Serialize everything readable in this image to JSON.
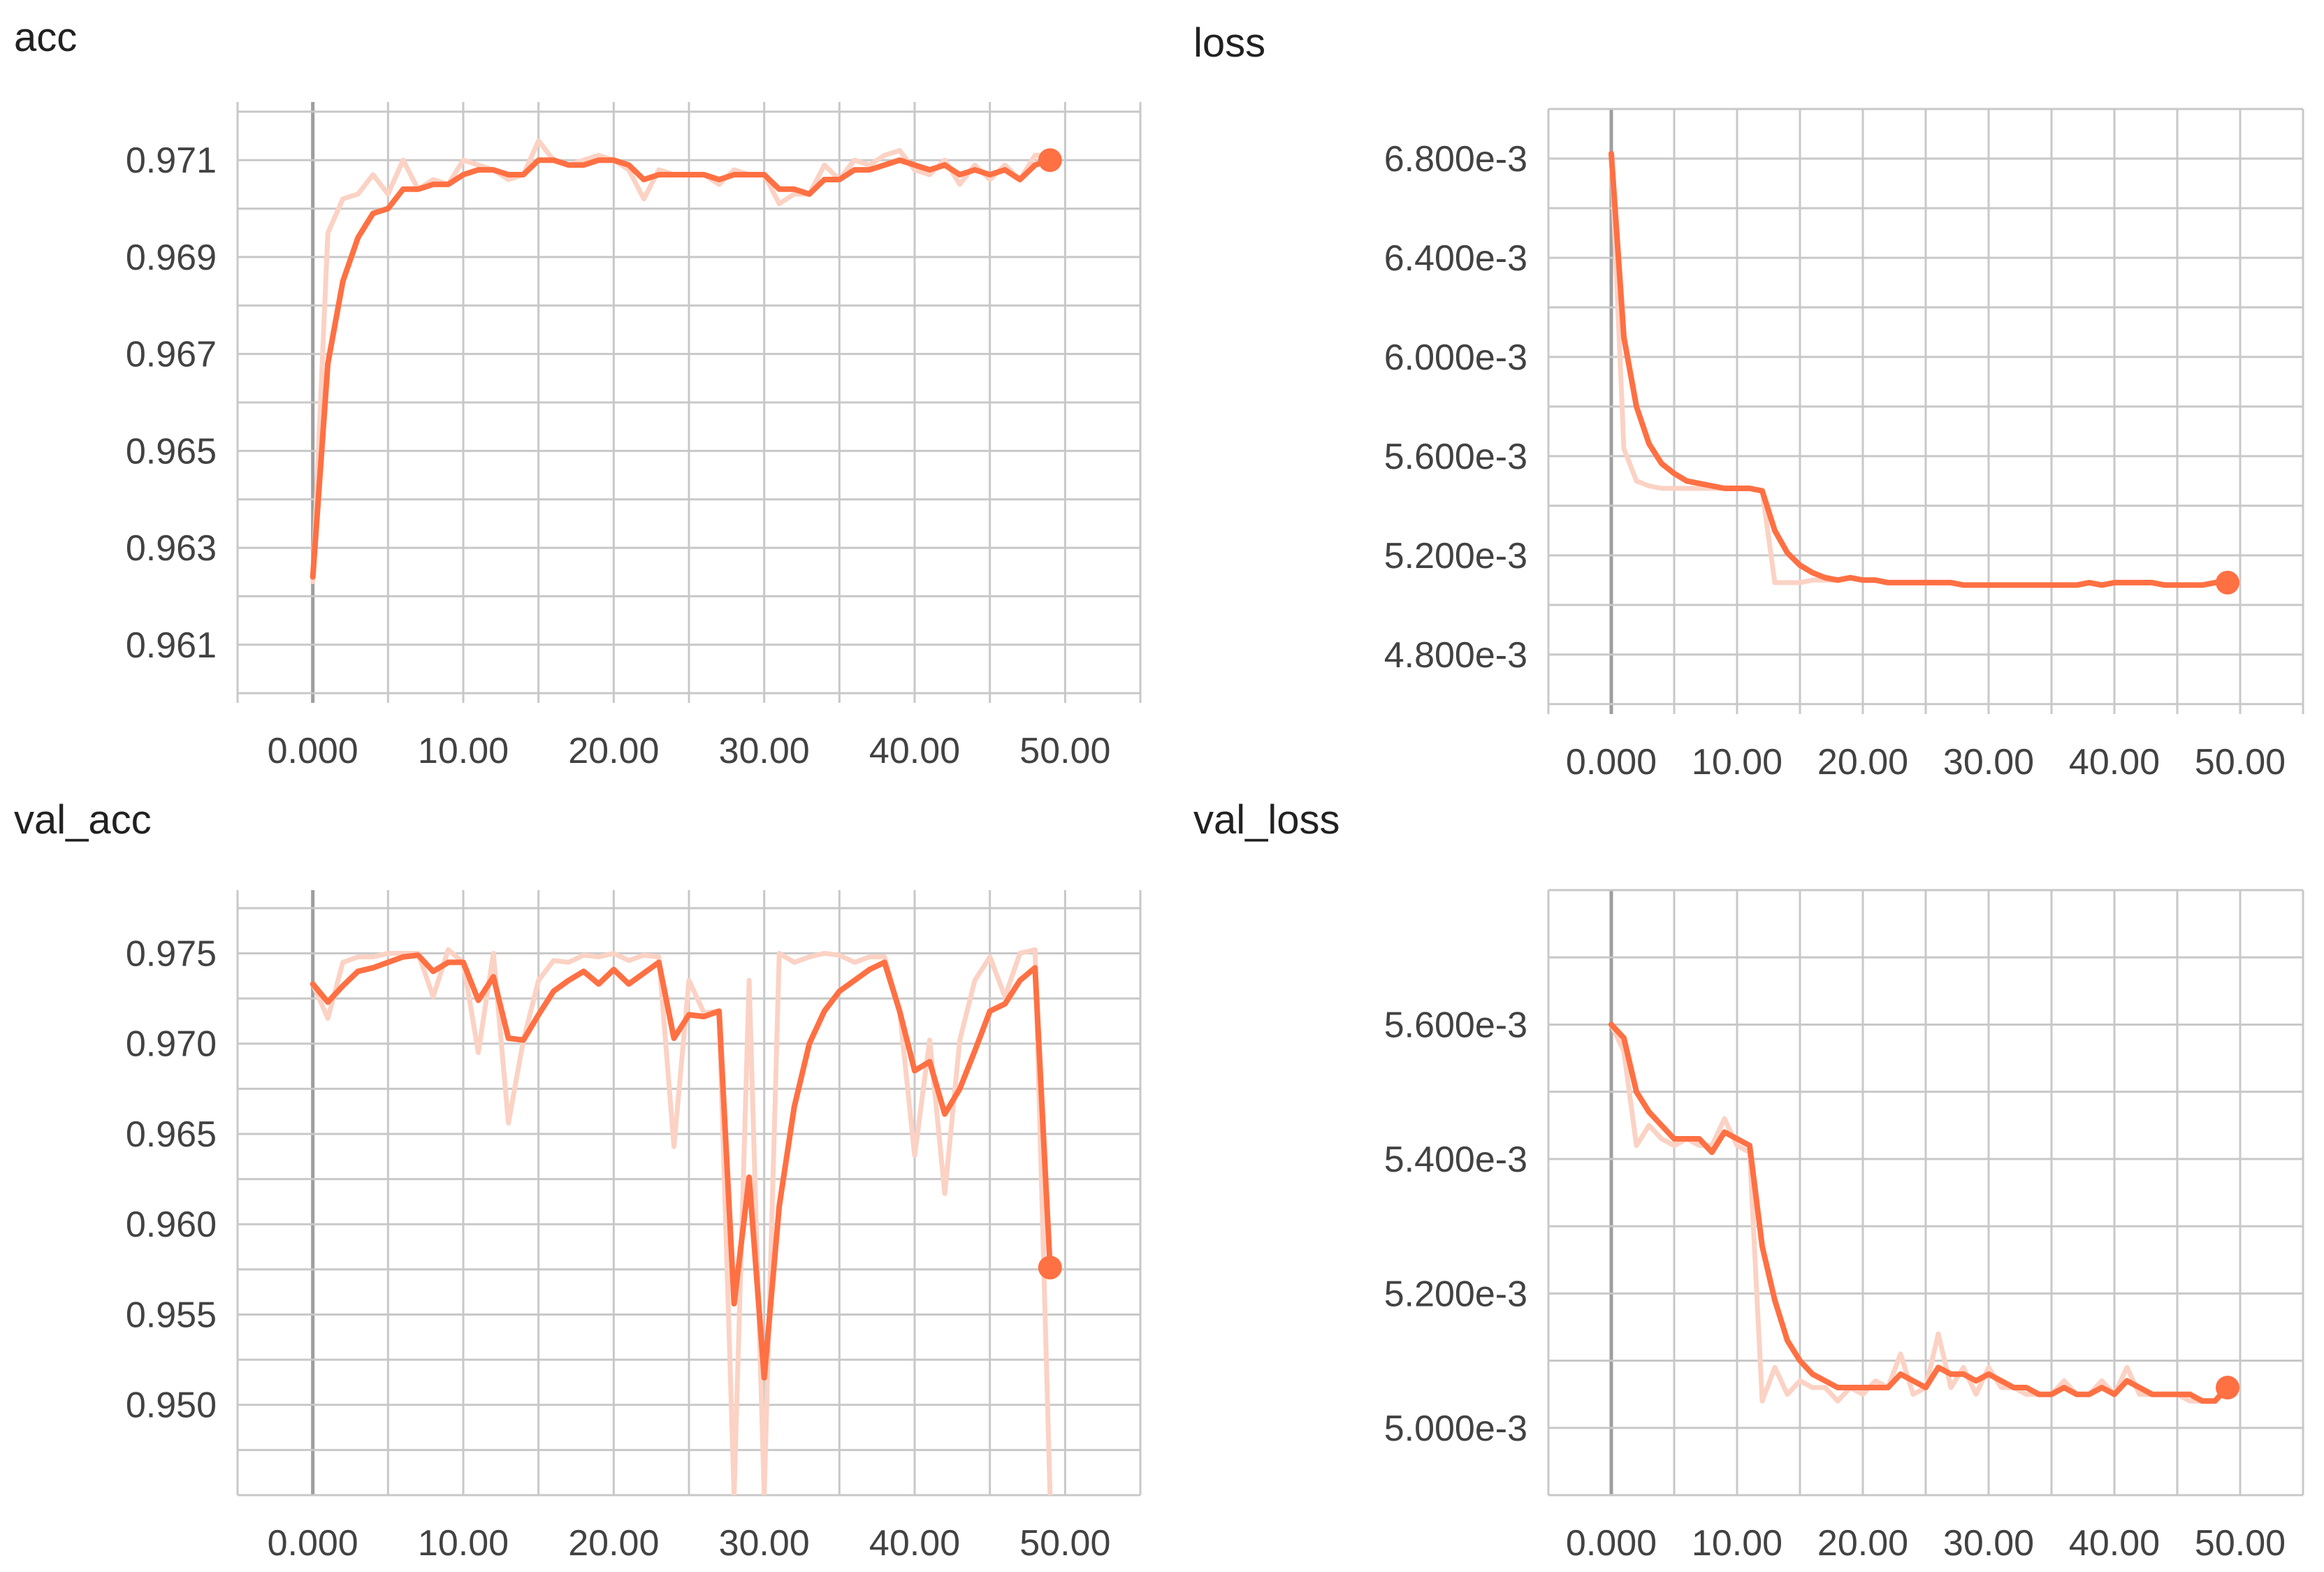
{
  "colors": {
    "series": "#ff7043",
    "raw_series": "#fbd2c4",
    "grid": "#c8c8c8",
    "zero_axis": "#9e9e9e",
    "text": "#212121"
  },
  "chart_data": [
    {
      "type": "line",
      "title": "acc",
      "xlim": [
        -5,
        55
      ],
      "ylim": [
        0.9598,
        0.9722
      ],
      "x_ticks": [
        "0.000",
        "10.00",
        "20.00",
        "30.00",
        "40.00",
        "50.00"
      ],
      "y_ticks": [
        "0.961",
        "0.963",
        "0.965",
        "0.967",
        "0.969",
        "0.971"
      ],
      "grid": true,
      "series": [
        {
          "role": "smoothed",
          "x": [
            0,
            1,
            2,
            3,
            4,
            5,
            6,
            7,
            8,
            9,
            10,
            11,
            12,
            13,
            14,
            15,
            16,
            17,
            18,
            19,
            20,
            21,
            22,
            23,
            24,
            25,
            26,
            27,
            28,
            29,
            30,
            31,
            32,
            33,
            34,
            35,
            36,
            37,
            38,
            39,
            40,
            41,
            42,
            43,
            44,
            45,
            46,
            47,
            48,
            49
          ],
          "y": [
            0.9624,
            0.9668,
            0.9685,
            0.9694,
            0.9699,
            0.97,
            0.9704,
            0.9704,
            0.9705,
            0.9705,
            0.9707,
            0.9708,
            0.9708,
            0.9707,
            0.9707,
            0.971,
            0.971,
            0.9709,
            0.9709,
            0.971,
            0.971,
            0.9709,
            0.9706,
            0.9707,
            0.9707,
            0.9707,
            0.9707,
            0.9706,
            0.9707,
            0.9707,
            0.9707,
            0.9704,
            0.9704,
            0.9703,
            0.9706,
            0.9706,
            0.9708,
            0.9708,
            0.9709,
            0.971,
            0.9709,
            0.9708,
            0.9709,
            0.9707,
            0.9708,
            0.9707,
            0.9708,
            0.9706,
            0.9709,
            0.971
          ]
        },
        {
          "role": "raw",
          "x": [
            0,
            1,
            2,
            3,
            4,
            5,
            6,
            7,
            8,
            9,
            10,
            11,
            12,
            13,
            14,
            15,
            16,
            17,
            18,
            19,
            20,
            21,
            22,
            23,
            24,
            25,
            26,
            27,
            28,
            29,
            30,
            31,
            32,
            33,
            34,
            35,
            36,
            37,
            38,
            39,
            40,
            41,
            42,
            43,
            44,
            45,
            46,
            47,
            48,
            49
          ],
          "y": [
            0.9623,
            0.9695,
            0.9702,
            0.9703,
            0.9707,
            0.9703,
            0.971,
            0.9704,
            0.9706,
            0.9705,
            0.971,
            0.9709,
            0.9708,
            0.9706,
            0.9707,
            0.9714,
            0.971,
            0.9709,
            0.971,
            0.9711,
            0.971,
            0.9708,
            0.9702,
            0.9708,
            0.9707,
            0.9707,
            0.9707,
            0.9705,
            0.9708,
            0.9707,
            0.9707,
            0.9701,
            0.9703,
            0.9703,
            0.9709,
            0.9706,
            0.971,
            0.9709,
            0.9711,
            0.9712,
            0.9708,
            0.9707,
            0.971,
            0.9705,
            0.9709,
            0.9706,
            0.9709,
            0.9706,
            0.9711,
            0.9711
          ]
        }
      ]
    },
    {
      "type": "line",
      "title": "loss",
      "xlim": [
        -5,
        55
      ],
      "ylim": [
        0.00456,
        0.007
      ],
      "x_ticks": [
        "0.000",
        "10.00",
        "20.00",
        "30.00",
        "40.00",
        "50.00"
      ],
      "y_ticks": [
        "4.800e-3",
        "5.200e-3",
        "5.600e-3",
        "6.000e-3",
        "6.400e-3",
        "6.800e-3"
      ],
      "grid": true,
      "series": [
        {
          "role": "smoothed",
          "x": [
            0,
            1,
            2,
            3,
            4,
            5,
            6,
            7,
            8,
            9,
            10,
            11,
            12,
            13,
            14,
            15,
            16,
            17,
            18,
            19,
            20,
            21,
            22,
            23,
            24,
            25,
            26,
            27,
            28,
            29,
            30,
            31,
            32,
            33,
            34,
            35,
            36,
            37,
            38,
            39,
            40,
            41,
            42,
            43,
            44,
            45,
            46,
            47,
            48,
            49
          ],
          "y": [
            0.00682,
            0.00608,
            0.0058,
            0.00565,
            0.00557,
            0.00553,
            0.0055,
            0.00549,
            0.00548,
            0.00547,
            0.00547,
            0.00547,
            0.00546,
            0.0053,
            0.00521,
            0.00516,
            0.00513,
            0.00511,
            0.0051,
            0.00511,
            0.0051,
            0.0051,
            0.00509,
            0.00509,
            0.00509,
            0.00509,
            0.00509,
            0.00509,
            0.00508,
            0.00508,
            0.00508,
            0.00508,
            0.00508,
            0.00508,
            0.00508,
            0.00508,
            0.00508,
            0.00508,
            0.00509,
            0.00508,
            0.00509,
            0.00509,
            0.00509,
            0.00509,
            0.00508,
            0.00508,
            0.00508,
            0.00508,
            0.00509,
            0.00509
          ]
        },
        {
          "role": "raw",
          "x": [
            0,
            1,
            2,
            3,
            4,
            5,
            6,
            7,
            8,
            9,
            10,
            11,
            12,
            13,
            14,
            15,
            16,
            17,
            18,
            19,
            20,
            21,
            22,
            23,
            24,
            25,
            26,
            27,
            28,
            29,
            30,
            31,
            32,
            33,
            34,
            35,
            36,
            37,
            38,
            39,
            40,
            41,
            42,
            43,
            44,
            45,
            46,
            47,
            48,
            49
          ],
          "y": [
            0.00682,
            0.00563,
            0.0055,
            0.00548,
            0.00547,
            0.00547,
            0.00547,
            0.00547,
            0.00547,
            0.00547,
            0.00547,
            0.00547,
            0.00546,
            0.00509,
            0.00509,
            0.00509,
            0.0051,
            0.0051,
            0.0051,
            0.00511,
            0.0051,
            0.0051,
            0.00509,
            0.00509,
            0.00509,
            0.00509,
            0.00509,
            0.00509,
            0.00508,
            0.00508,
            0.00508,
            0.00508,
            0.00508,
            0.00508,
            0.00508,
            0.00508,
            0.00508,
            0.00508,
            0.00509,
            0.00508,
            0.00509,
            0.00509,
            0.00509,
            0.00509,
            0.00508,
            0.00508,
            0.00508,
            0.00508,
            0.00509,
            0.00509
          ]
        }
      ]
    },
    {
      "type": "line",
      "title": "val_acc",
      "xlim": [
        -5,
        55
      ],
      "ylim": [
        0.945,
        0.9785
      ],
      "x_ticks": [
        "0.000",
        "10.00",
        "20.00",
        "30.00",
        "40.00",
        "50.00"
      ],
      "y_ticks": [
        "0.950",
        "0.955",
        "0.960",
        "0.965",
        "0.970",
        "0.975"
      ],
      "grid": true,
      "series": [
        {
          "role": "smoothed",
          "x": [
            0,
            1,
            2,
            3,
            4,
            5,
            6,
            7,
            8,
            9,
            10,
            11,
            12,
            13,
            14,
            15,
            16,
            17,
            18,
            19,
            20,
            21,
            22,
            23,
            24,
            25,
            26,
            27,
            28,
            29,
            30,
            31,
            32,
            33,
            34,
            35,
            36,
            37,
            38,
            39,
            40,
            41,
            42,
            43,
            44,
            45,
            46,
            47,
            48,
            49
          ],
          "y": [
            0.9733,
            0.9723,
            0.9732,
            0.974,
            0.9742,
            0.9745,
            0.9748,
            0.9749,
            0.974,
            0.9745,
            0.9745,
            0.9724,
            0.9737,
            0.9703,
            0.9702,
            0.9716,
            0.9729,
            0.9735,
            0.974,
            0.9733,
            0.9741,
            0.9733,
            0.9739,
            0.9745,
            0.9703,
            0.9716,
            0.9715,
            0.9718,
            0.9556,
            0.9626,
            0.9515,
            0.961,
            0.9665,
            0.97,
            0.9718,
            0.9729,
            0.9735,
            0.9741,
            0.9745,
            0.9718,
            0.9685,
            0.969,
            0.9661,
            0.9675,
            0.9696,
            0.9718,
            0.9722,
            0.9735,
            0.9742,
            0.9576
          ]
        },
        {
          "role": "raw",
          "x": [
            0,
            1,
            2,
            3,
            4,
            5,
            6,
            7,
            8,
            9,
            10,
            11,
            12,
            13,
            14,
            15,
            16,
            17,
            18,
            19,
            20,
            21,
            22,
            23,
            24,
            25,
            26,
            27,
            28,
            29,
            30,
            31,
            32,
            33,
            34,
            35,
            36,
            37,
            38,
            39,
            40,
            41,
            42,
            43,
            44,
            45,
            46,
            47,
            48,
            49
          ],
          "y": [
            0.9733,
            0.9714,
            0.9745,
            0.9748,
            0.9748,
            0.975,
            0.975,
            0.975,
            0.9726,
            0.9752,
            0.9745,
            0.9695,
            0.975,
            0.9656,
            0.9702,
            0.9735,
            0.9746,
            0.9745,
            0.9749,
            0.9748,
            0.975,
            0.9746,
            0.9749,
            0.9748,
            0.9643,
            0.9735,
            0.9717,
            0.9718,
            0.945,
            0.9735,
            0.945,
            0.975,
            0.9745,
            0.9748,
            0.975,
            0.9749,
            0.9745,
            0.9748,
            0.9748,
            0.9718,
            0.9638,
            0.9702,
            0.9617,
            0.9702,
            0.9735,
            0.9748,
            0.9726,
            0.975,
            0.9752,
            0.945
          ]
        }
      ]
    },
    {
      "type": "line",
      "title": "val_loss",
      "xlim": [
        -5,
        55
      ],
      "ylim": [
        0.0049,
        0.0058
      ],
      "x_ticks": [
        "0.000",
        "10.00",
        "20.00",
        "30.00",
        "40.00",
        "50.00"
      ],
      "y_ticks": [
        "5.000e-3",
        "5.200e-3",
        "5.400e-3",
        "5.600e-3"
      ],
      "grid": true,
      "series": [
        {
          "role": "smoothed",
          "x": [
            0,
            1,
            2,
            3,
            4,
            5,
            6,
            7,
            8,
            9,
            10,
            11,
            12,
            13,
            14,
            15,
            16,
            17,
            18,
            19,
            20,
            21,
            22,
            23,
            24,
            25,
            26,
            27,
            28,
            29,
            30,
            31,
            32,
            33,
            34,
            35,
            36,
            37,
            38,
            39,
            40,
            41,
            42,
            43,
            44,
            45,
            46,
            47,
            48,
            49
          ],
          "y": [
            0.0056,
            0.00558,
            0.0055,
            0.00547,
            0.00545,
            0.00543,
            0.00543,
            0.00543,
            0.00541,
            0.00544,
            0.00543,
            0.00542,
            0.00527,
            0.00519,
            0.00513,
            0.0051,
            0.00508,
            0.00507,
            0.00506,
            0.00506,
            0.00506,
            0.00506,
            0.00506,
            0.00508,
            0.00507,
            0.00506,
            0.00509,
            0.00508,
            0.00508,
            0.00507,
            0.00508,
            0.00507,
            0.00506,
            0.00506,
            0.00505,
            0.00505,
            0.00506,
            0.00505,
            0.00505,
            0.00506,
            0.00505,
            0.00507,
            0.00506,
            0.00505,
            0.00505,
            0.00505,
            0.00505,
            0.00504,
            0.00504,
            0.00506
          ]
        },
        {
          "role": "raw",
          "x": [
            0,
            1,
            2,
            3,
            4,
            5,
            6,
            7,
            8,
            9,
            10,
            11,
            12,
            13,
            14,
            15,
            16,
            17,
            18,
            19,
            20,
            21,
            22,
            23,
            24,
            25,
            26,
            27,
            28,
            29,
            30,
            31,
            32,
            33,
            34,
            35,
            36,
            37,
            38,
            39,
            40,
            41,
            42,
            43,
            44,
            45,
            46,
            47,
            48,
            49
          ],
          "y": [
            0.0056,
            0.00556,
            0.00542,
            0.00545,
            0.00543,
            0.00542,
            0.00543,
            0.00542,
            0.00542,
            0.00546,
            0.00542,
            0.00541,
            0.00504,
            0.00509,
            0.00505,
            0.00507,
            0.00506,
            0.00506,
            0.00504,
            0.00506,
            0.00505,
            0.00507,
            0.00506,
            0.00511,
            0.00505,
            0.00506,
            0.00514,
            0.00506,
            0.00509,
            0.00505,
            0.00509,
            0.00506,
            0.00506,
            0.00505,
            0.00505,
            0.00505,
            0.00507,
            0.00505,
            0.00505,
            0.00507,
            0.00505,
            0.00509,
            0.00505,
            0.00505,
            0.00505,
            0.00505,
            0.00504,
            0.00504,
            0.00504,
            0.00507
          ]
        }
      ]
    }
  ]
}
